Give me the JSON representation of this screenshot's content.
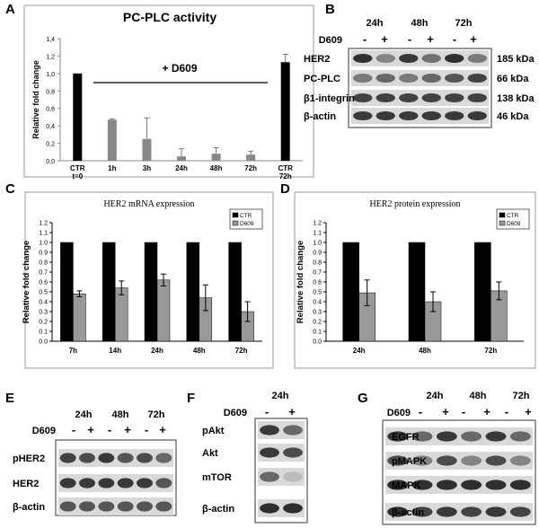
{
  "panel_letters": [
    "A",
    "B",
    "C",
    "D",
    "E",
    "F",
    "G"
  ],
  "chart_data": [
    {
      "type": "bar",
      "panel": "A",
      "title": "PC-PLC activity",
      "ylabel": "Relative fold change",
      "ylim": [
        0,
        1.4
      ],
      "yticks": [
        "0,0",
        "0,2",
        "0,4",
        "0,6",
        "0,8",
        "1,0",
        "1,2",
        "1,4"
      ],
      "categories": [
        "CTR t=0",
        "1h",
        "3h",
        "24h",
        "48h",
        "72h",
        "CTR 72h"
      ],
      "category_lines": [
        [
          "CTR",
          "t=0"
        ],
        [
          "1h"
        ],
        [
          "3h"
        ],
        [
          "24h"
        ],
        [
          "48h"
        ],
        [
          "72h"
        ],
        [
          "CTR",
          "72h"
        ]
      ],
      "values": [
        1.0,
        0.47,
        0.25,
        0.05,
        0.08,
        0.07,
        1.13
      ],
      "errors": [
        0,
        0.01,
        0.24,
        0.09,
        0.07,
        0.04,
        0.09
      ],
      "bar_colors": [
        "#000000",
        "#888888",
        "#888888",
        "#888888",
        "#888888",
        "#888888",
        "#000000"
      ],
      "annotation": "+ D609"
    },
    {
      "type": "bar",
      "panel": "C",
      "title": "HER2  mRNA expression",
      "ylabel": "Relative fold change",
      "ylim": [
        0,
        1.2
      ],
      "yticks": [
        "0.0",
        "0.1",
        "0.2",
        "0.3",
        "0.4",
        "0.5",
        "0.6",
        "0.7",
        "0.8",
        "0.9",
        "1.0",
        "1.1",
        "1.2"
      ],
      "categories": [
        "7h",
        "14h",
        "24h",
        "48h",
        "72h"
      ],
      "series": [
        {
          "name": "CTR",
          "color": "#000000",
          "values": [
            1,
            1,
            1,
            1,
            1
          ],
          "errors": [
            0,
            0,
            0,
            0,
            0
          ]
        },
        {
          "name": "D609",
          "color": "#999999",
          "values": [
            0.48,
            0.54,
            0.62,
            0.44,
            0.3
          ],
          "errors": [
            0.03,
            0.07,
            0.06,
            0.13,
            0.1
          ]
        }
      ],
      "legend": "top-right"
    },
    {
      "type": "bar",
      "panel": "D",
      "title": "HER2  protein expression",
      "ylabel": "Relative fold change",
      "ylim": [
        0,
        1.2
      ],
      "yticks": [
        "0.0",
        "0.1",
        "0.2",
        "0.3",
        "0.4",
        "0.5",
        "0.6",
        "0.7",
        "0.8",
        "0.9",
        "1.0",
        "1.1",
        "1.2"
      ],
      "categories": [
        "24h",
        "48h",
        "72h"
      ],
      "series": [
        {
          "name": "CTR",
          "color": "#000000",
          "values": [
            1,
            1,
            1
          ],
          "errors": [
            0,
            0,
            0
          ]
        },
        {
          "name": "D609",
          "color": "#999999",
          "values": [
            0.49,
            0.4,
            0.51
          ],
          "errors": [
            0.13,
            0.1,
            0.09
          ]
        }
      ],
      "legend": "top-right"
    }
  ],
  "blots": {
    "B": {
      "times": [
        "24h",
        "48h",
        "72h"
      ],
      "treatment": "D609",
      "signs": [
        "-",
        "+",
        "-",
        "+",
        "-",
        "+"
      ],
      "rows": [
        {
          "label": "HER2",
          "kda": "185 kDa"
        },
        {
          "label": "PC-PLC",
          "kda": "66 kDa"
        },
        {
          "label": "β1-integrin",
          "kda": "138 kDa"
        },
        {
          "label": "β-actin",
          "kda": "46 kDa"
        }
      ]
    },
    "E": {
      "times": [
        "24h",
        "48h",
        "72h"
      ],
      "treatment": "D609",
      "signs": [
        "-",
        "+",
        "-",
        "+",
        "-",
        "+"
      ],
      "rows": [
        {
          "label": "pHER2"
        },
        {
          "label": "HER2"
        },
        {
          "label": "β-actin"
        }
      ]
    },
    "F": {
      "times": [
        "24h"
      ],
      "treatment": "D609",
      "signs": [
        "-",
        "+"
      ],
      "rows": [
        {
          "label": "pAkt"
        },
        {
          "label": "Akt"
        },
        {
          "label": "mTOR"
        },
        {
          "label": "β-actin"
        }
      ]
    },
    "G": {
      "times": [
        "24h",
        "48h",
        "72h"
      ],
      "treatment": "D609",
      "signs": [
        "-",
        "+",
        "-",
        "+",
        "-",
        "+"
      ],
      "rows": [
        {
          "label": "EGFR"
        },
        {
          "label": "pMAPK"
        },
        {
          "label": "MAPK"
        },
        {
          "label": "β-actin"
        }
      ]
    }
  }
}
